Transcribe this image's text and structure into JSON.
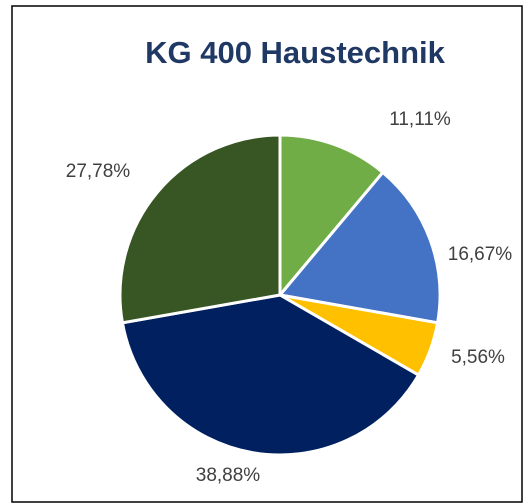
{
  "chart_data": {
    "type": "pie",
    "title": "KG 400 Haustechnik",
    "values": [
      11.11,
      16.67,
      5.56,
      38.88,
      27.78
    ],
    "value_labels": [
      "11,11%",
      "16,67%",
      "5,56%",
      "38,88%",
      "27,78%"
    ],
    "colors": [
      "#70ad47",
      "#4472c4",
      "#ffc000",
      "#002060",
      "#375623"
    ]
  }
}
